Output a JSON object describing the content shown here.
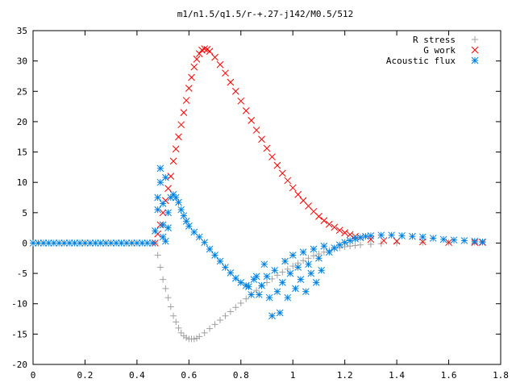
{
  "chart_data": {
    "type": "scatter",
    "title": "m1/n1.5/q1.5/r-+.27-j142/M0.5/512",
    "xlabel": "",
    "ylabel": "",
    "xlim": [
      0,
      1.8
    ],
    "ylim": [
      -20,
      35
    ],
    "x_ticks": [
      "0",
      "0.2",
      "0.4",
      "0.6",
      "0.8",
      "1",
      "1.2",
      "1.4",
      "1.6",
      "1.8"
    ],
    "y_ticks": [
      "-20",
      "-15",
      "-10",
      "-5",
      "0",
      "5",
      "10",
      "15",
      "20",
      "25",
      "30",
      "35"
    ],
    "grid": false,
    "legend_position": "top-right",
    "series": [
      {
        "name": "R stress",
        "marker": "plus",
        "color": "#a0a0a0",
        "points": [
          [
            0.47,
            0
          ],
          [
            0.48,
            -2
          ],
          [
            0.49,
            -4
          ],
          [
            0.5,
            -6
          ],
          [
            0.51,
            -7.5
          ],
          [
            0.52,
            -9
          ],
          [
            0.53,
            -10.5
          ],
          [
            0.54,
            -12
          ],
          [
            0.55,
            -13
          ],
          [
            0.56,
            -14
          ],
          [
            0.57,
            -14.8
          ],
          [
            0.58,
            -15.3
          ],
          [
            0.59,
            -15.6
          ],
          [
            0.6,
            -15.8
          ],
          [
            0.61,
            -15.8
          ],
          [
            0.62,
            -15.8
          ],
          [
            0.63,
            -15.7
          ],
          [
            0.64,
            -15.4
          ],
          [
            0.66,
            -14.8
          ],
          [
            0.68,
            -14.1
          ],
          [
            0.7,
            -13.4
          ],
          [
            0.72,
            -12.7
          ],
          [
            0.74,
            -12
          ],
          [
            0.76,
            -11.3
          ],
          [
            0.78,
            -10.6
          ],
          [
            0.8,
            -9.9
          ],
          [
            0.82,
            -9.2
          ],
          [
            0.84,
            -8.5
          ],
          [
            0.86,
            -7.8
          ],
          [
            0.88,
            -7.1
          ],
          [
            0.9,
            -6.5
          ],
          [
            0.92,
            -5.9
          ],
          [
            0.94,
            -5.3
          ],
          [
            0.96,
            -4.8
          ],
          [
            0.98,
            -4.3
          ],
          [
            1.0,
            -3.8
          ],
          [
            1.02,
            -3.3
          ],
          [
            1.04,
            -2.9
          ],
          [
            1.06,
            -2.5
          ],
          [
            1.08,
            -2.1
          ],
          [
            1.1,
            -1.8
          ],
          [
            1.12,
            -1.5
          ],
          [
            1.14,
            -1.2
          ],
          [
            1.16,
            -1.0
          ],
          [
            1.18,
            -0.8
          ],
          [
            1.2,
            -0.6
          ],
          [
            1.22,
            -0.5
          ],
          [
            1.24,
            -0.4
          ],
          [
            1.26,
            -0.3
          ],
          [
            1.3,
            -0.2
          ],
          [
            1.34,
            -0.1
          ],
          [
            1.4,
            0
          ],
          [
            1.5,
            0.1
          ],
          [
            1.6,
            0.1
          ],
          [
            1.7,
            0.1
          ],
          [
            1.73,
            0.1
          ]
        ]
      },
      {
        "name": "G work",
        "marker": "cross",
        "color": "#ff0000",
        "points": [
          [
            0.47,
            0
          ],
          [
            0.48,
            1.5
          ],
          [
            0.49,
            3
          ],
          [
            0.5,
            5
          ],
          [
            0.51,
            7
          ],
          [
            0.52,
            9
          ],
          [
            0.53,
            11
          ],
          [
            0.54,
            13.5
          ],
          [
            0.55,
            15.5
          ],
          [
            0.56,
            17.5
          ],
          [
            0.57,
            19.5
          ],
          [
            0.58,
            21.5
          ],
          [
            0.59,
            23.5
          ],
          [
            0.6,
            25.5
          ],
          [
            0.61,
            27.3
          ],
          [
            0.62,
            29
          ],
          [
            0.63,
            30.3
          ],
          [
            0.64,
            31.2
          ],
          [
            0.65,
            31.8
          ],
          [
            0.66,
            32
          ],
          [
            0.67,
            31.9
          ],
          [
            0.68,
            31.6
          ],
          [
            0.7,
            30.6
          ],
          [
            0.72,
            29.4
          ],
          [
            0.74,
            28
          ],
          [
            0.76,
            26.5
          ],
          [
            0.78,
            25
          ],
          [
            0.8,
            23.4
          ],
          [
            0.82,
            21.8
          ],
          [
            0.84,
            20.2
          ],
          [
            0.86,
            18.6
          ],
          [
            0.88,
            17.1
          ],
          [
            0.9,
            15.6
          ],
          [
            0.92,
            14.2
          ],
          [
            0.94,
            12.8
          ],
          [
            0.96,
            11.5
          ],
          [
            0.98,
            10.3
          ],
          [
            1.0,
            9.1
          ],
          [
            1.02,
            8
          ],
          [
            1.04,
            7
          ],
          [
            1.06,
            6.1
          ],
          [
            1.08,
            5.2
          ],
          [
            1.1,
            4.4
          ],
          [
            1.12,
            3.7
          ],
          [
            1.14,
            3.1
          ],
          [
            1.16,
            2.6
          ],
          [
            1.18,
            2.1
          ],
          [
            1.2,
            1.7
          ],
          [
            1.22,
            1.4
          ],
          [
            1.24,
            1.1
          ],
          [
            1.26,
            0.9
          ],
          [
            1.3,
            0.6
          ],
          [
            1.35,
            0.4
          ],
          [
            1.4,
            0.3
          ],
          [
            1.5,
            0.2
          ],
          [
            1.6,
            0.1
          ],
          [
            1.7,
            0.1
          ],
          [
            1.73,
            0.1
          ]
        ]
      },
      {
        "name": "Acoustic flux",
        "marker": "star",
        "color": "#0080e0",
        "points": [
          [
            0.0,
            0
          ],
          [
            0.02,
            0
          ],
          [
            0.04,
            0
          ],
          [
            0.06,
            0
          ],
          [
            0.08,
            0
          ],
          [
            0.1,
            0
          ],
          [
            0.12,
            0
          ],
          [
            0.14,
            0
          ],
          [
            0.16,
            0
          ],
          [
            0.18,
            0
          ],
          [
            0.2,
            0
          ],
          [
            0.22,
            0
          ],
          [
            0.24,
            0
          ],
          [
            0.26,
            0
          ],
          [
            0.28,
            0
          ],
          [
            0.3,
            0
          ],
          [
            0.32,
            0
          ],
          [
            0.34,
            0
          ],
          [
            0.36,
            0
          ],
          [
            0.38,
            0
          ],
          [
            0.4,
            0
          ],
          [
            0.42,
            0
          ],
          [
            0.44,
            0
          ],
          [
            0.46,
            0
          ],
          [
            0.47,
            2
          ],
          [
            0.48,
            5.5
          ],
          [
            0.48,
            7.5
          ],
          [
            0.49,
            12.3
          ],
          [
            0.49,
            10
          ],
          [
            0.5,
            6.5
          ],
          [
            0.5,
            3
          ],
          [
            0.5,
            1
          ],
          [
            0.51,
            10.8
          ],
          [
            0.51,
            0.3
          ],
          [
            0.52,
            2.5
          ],
          [
            0.52,
            5
          ],
          [
            0.53,
            7.5
          ],
          [
            0.54,
            8
          ],
          [
            0.55,
            7.5
          ],
          [
            0.56,
            6.7
          ],
          [
            0.57,
            5.5
          ],
          [
            0.58,
            4.5
          ],
          [
            0.59,
            3.6
          ],
          [
            0.6,
            2.8
          ],
          [
            0.62,
            1.8
          ],
          [
            0.64,
            1
          ],
          [
            0.66,
            0.1
          ],
          [
            0.68,
            -1
          ],
          [
            0.7,
            -2
          ],
          [
            0.72,
            -3
          ],
          [
            0.74,
            -4
          ],
          [
            0.76,
            -4.9
          ],
          [
            0.78,
            -5.8
          ],
          [
            0.8,
            -6.5
          ],
          [
            0.82,
            -7
          ],
          [
            0.83,
            -7.2
          ],
          [
            0.84,
            -8.5
          ],
          [
            0.85,
            -6
          ],
          [
            0.86,
            -5.5
          ],
          [
            0.87,
            -8.5
          ],
          [
            0.88,
            -7
          ],
          [
            0.89,
            -3.5
          ],
          [
            0.9,
            -5.5
          ],
          [
            0.91,
            -9
          ],
          [
            0.92,
            -12
          ],
          [
            0.93,
            -4.5
          ],
          [
            0.94,
            -8
          ],
          [
            0.95,
            -11.5
          ],
          [
            0.96,
            -6.5
          ],
          [
            0.97,
            -3
          ],
          [
            0.98,
            -9
          ],
          [
            0.99,
            -5
          ],
          [
            1.0,
            -2
          ],
          [
            1.01,
            -7.5
          ],
          [
            1.02,
            -4
          ],
          [
            1.03,
            -6
          ],
          [
            1.04,
            -1.5
          ],
          [
            1.05,
            -8
          ],
          [
            1.06,
            -3.5
          ],
          [
            1.07,
            -5
          ],
          [
            1.08,
            -1
          ],
          [
            1.09,
            -6.5
          ],
          [
            1.1,
            -2.5
          ],
          [
            1.11,
            -4.5
          ],
          [
            1.12,
            -0.5
          ],
          [
            1.14,
            -1.5
          ],
          [
            1.16,
            -0.8
          ],
          [
            1.18,
            -0.3
          ],
          [
            1.2,
            0.1
          ],
          [
            1.22,
            0.4
          ],
          [
            1.24,
            0.7
          ],
          [
            1.26,
            0.9
          ],
          [
            1.28,
            1.1
          ],
          [
            1.3,
            1.2
          ],
          [
            1.34,
            1.3
          ],
          [
            1.38,
            1.3
          ],
          [
            1.42,
            1.2
          ],
          [
            1.46,
            1.1
          ],
          [
            1.5,
            1
          ],
          [
            1.54,
            0.8
          ],
          [
            1.58,
            0.6
          ],
          [
            1.62,
            0.5
          ],
          [
            1.66,
            0.4
          ],
          [
            1.7,
            0.3
          ],
          [
            1.73,
            0.2
          ]
        ]
      }
    ]
  }
}
